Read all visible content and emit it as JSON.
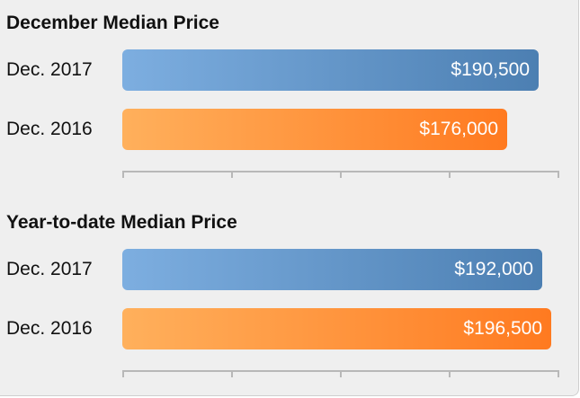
{
  "chart_data": [
    {
      "type": "bar",
      "orientation": "horizontal",
      "title": "December Median Price",
      "categories": [
        "Dec. 2017",
        "Dec. 2016"
      ],
      "values": [
        190500,
        176000
      ],
      "value_labels": [
        "$190,500",
        "$176,000"
      ],
      "xlim": [
        0,
        200000
      ],
      "grid": false,
      "legend": "none"
    },
    {
      "type": "bar",
      "orientation": "horizontal",
      "title": "Year-to-date Median Price",
      "categories": [
        "Dec. 2017",
        "Dec. 2016"
      ],
      "values": [
        192000,
        196500
      ],
      "value_labels": [
        "$192,000",
        "$196,500"
      ],
      "xlim": [
        0,
        200000
      ],
      "grid": false,
      "legend": "none"
    }
  ],
  "colors": {
    "dec_2017_start": "#7daee0",
    "dec_2017_end": "#4c7fb2",
    "dec_2016_start": "#ffb05c",
    "dec_2016_end": "#ff7a20"
  },
  "axis_ticks": 5
}
